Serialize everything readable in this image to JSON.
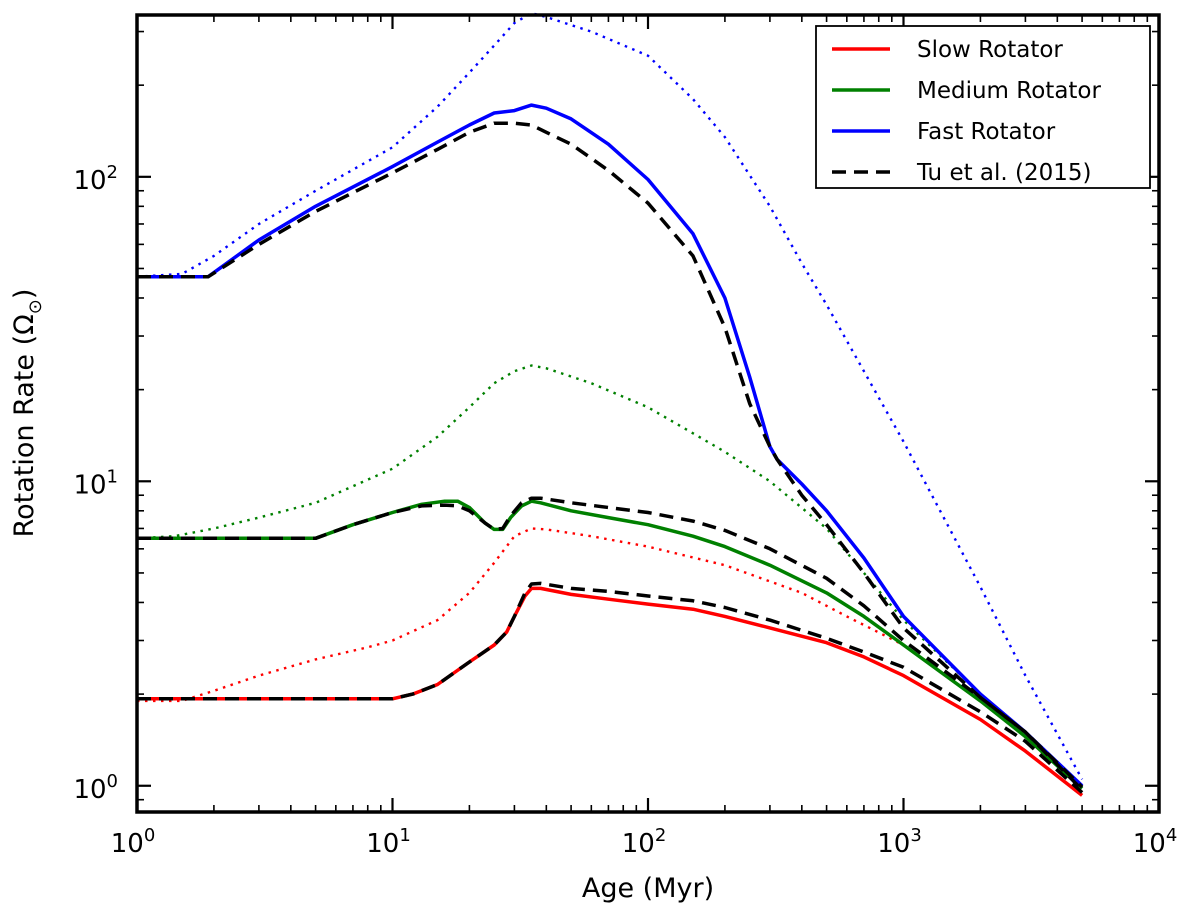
{
  "chart_data": {
    "type": "line",
    "title": "",
    "xlabel": "Age (Myr)",
    "ylabel": "Rotation Rate (Ω",
    "ylabel_sub": "⊙",
    "ylabel_close": ")",
    "xscale": "log",
    "yscale": "log",
    "xlim": [
      1,
      10000
    ],
    "ylim": [
      0.82,
      340
    ],
    "x_ticks": [
      {
        "value": 1,
        "base": "10",
        "exp": "0"
      },
      {
        "value": 10,
        "base": "10",
        "exp": "1"
      },
      {
        "value": 100,
        "base": "10",
        "exp": "2"
      },
      {
        "value": 1000,
        "base": "10",
        "exp": "3"
      },
      {
        "value": 10000,
        "base": "10",
        "exp": "4"
      }
    ],
    "y_ticks": [
      {
        "value": 1,
        "base": "10",
        "exp": "0"
      },
      {
        "value": 10,
        "base": "10",
        "exp": "1"
      },
      {
        "value": 100,
        "base": "10",
        "exp": "2"
      }
    ],
    "legend": [
      {
        "label": "Slow Rotator",
        "color": "#ff0000",
        "style": "solid"
      },
      {
        "label": "Medium Rotator",
        "color": "#008000",
        "style": "solid"
      },
      {
        "label": "Fast Rotator",
        "color": "#0000ff",
        "style": "solid"
      },
      {
        "label": "Tu et al. (2015)",
        "color": "#000000",
        "style": "dashed"
      }
    ],
    "series": [
      {
        "name": "Slow Rotator (dotted)",
        "color": "#ff0000",
        "style": "dotted",
        "points": [
          [
            1,
            1.9
          ],
          [
            1.5,
            1.9
          ],
          [
            2,
            2.05
          ],
          [
            3,
            2.3
          ],
          [
            5,
            2.6
          ],
          [
            8,
            2.85
          ],
          [
            10,
            3.0
          ],
          [
            15,
            3.5
          ],
          [
            20,
            4.3
          ],
          [
            25,
            5.4
          ],
          [
            30,
            6.6
          ],
          [
            35,
            7.0
          ],
          [
            40,
            6.95
          ],
          [
            60,
            6.6
          ],
          [
            100,
            6.1
          ],
          [
            200,
            5.3
          ],
          [
            400,
            4.3
          ],
          [
            600,
            3.6
          ],
          [
            1000,
            2.9
          ],
          [
            2000,
            1.9
          ],
          [
            3000,
            1.45
          ],
          [
            5000,
            1.0
          ]
        ]
      },
      {
        "name": "Medium Rotator (dotted)",
        "color": "#008000",
        "style": "dotted",
        "points": [
          [
            1,
            6.5
          ],
          [
            1.4,
            6.6
          ],
          [
            2,
            7.0
          ],
          [
            3,
            7.6
          ],
          [
            5,
            8.5
          ],
          [
            10,
            11
          ],
          [
            15,
            14
          ],
          [
            20,
            17.5
          ],
          [
            25,
            21
          ],
          [
            30,
            23
          ],
          [
            35,
            24
          ],
          [
            40,
            23.5
          ],
          [
            60,
            21
          ],
          [
            100,
            17.5
          ],
          [
            200,
            12.5
          ],
          [
            300,
            10
          ],
          [
            500,
            7
          ],
          [
            700,
            5
          ],
          [
            1000,
            3.5
          ],
          [
            2000,
            2.0
          ],
          [
            3000,
            1.5
          ],
          [
            5000,
            1.0
          ]
        ]
      },
      {
        "name": "Fast Rotator (dotted)",
        "color": "#0000ff",
        "style": "dotted",
        "points": [
          [
            1,
            47
          ],
          [
            1.5,
            48
          ],
          [
            2,
            55
          ],
          [
            3,
            70
          ],
          [
            5,
            90
          ],
          [
            10,
            125
          ],
          [
            15,
            170
          ],
          [
            20,
            220
          ],
          [
            25,
            270
          ],
          [
            30,
            320
          ],
          [
            35,
            345
          ],
          [
            40,
            335
          ],
          [
            60,
            300
          ],
          [
            100,
            250
          ],
          [
            150,
            180
          ],
          [
            200,
            135
          ],
          [
            300,
            80
          ],
          [
            400,
            52
          ],
          [
            500,
            38
          ],
          [
            700,
            23
          ],
          [
            1000,
            13.5
          ],
          [
            2000,
            4.5
          ],
          [
            3000,
            2.3
          ],
          [
            5000,
            1.05
          ]
        ]
      },
      {
        "name": "Slow Rotator",
        "color": "#ff0000",
        "style": "solid",
        "points": [
          [
            1,
            1.93
          ],
          [
            10,
            1.93
          ],
          [
            12,
            2.0
          ],
          [
            15,
            2.15
          ],
          [
            20,
            2.55
          ],
          [
            25,
            2.9
          ],
          [
            28,
            3.2
          ],
          [
            30,
            3.6
          ],
          [
            33,
            4.2
          ],
          [
            35,
            4.45
          ],
          [
            38,
            4.45
          ],
          [
            50,
            4.25
          ],
          [
            70,
            4.1
          ],
          [
            100,
            3.95
          ],
          [
            150,
            3.8
          ],
          [
            200,
            3.6
          ],
          [
            300,
            3.3
          ],
          [
            500,
            2.95
          ],
          [
            700,
            2.65
          ],
          [
            1000,
            2.3
          ],
          [
            2000,
            1.65
          ],
          [
            3000,
            1.3
          ],
          [
            5000,
            0.93
          ]
        ]
      },
      {
        "name": "Medium Rotator",
        "color": "#008000",
        "style": "solid",
        "points": [
          [
            1,
            6.5
          ],
          [
            5,
            6.5
          ],
          [
            7,
            7.2
          ],
          [
            10,
            7.9
          ],
          [
            13,
            8.4
          ],
          [
            16,
            8.6
          ],
          [
            18,
            8.6
          ],
          [
            20,
            8.2
          ],
          [
            23,
            7.3
          ],
          [
            25,
            6.95
          ],
          [
            27,
            6.95
          ],
          [
            29,
            7.6
          ],
          [
            32,
            8.3
          ],
          [
            35,
            8.6
          ],
          [
            38,
            8.5
          ],
          [
            50,
            8.0
          ],
          [
            70,
            7.6
          ],
          [
            100,
            7.2
          ],
          [
            150,
            6.6
          ],
          [
            200,
            6.1
          ],
          [
            300,
            5.3
          ],
          [
            500,
            4.3
          ],
          [
            700,
            3.6
          ],
          [
            1000,
            2.9
          ],
          [
            2000,
            1.9
          ],
          [
            3000,
            1.45
          ],
          [
            5000,
            0.98
          ]
        ]
      },
      {
        "name": "Fast Rotator",
        "color": "#0000ff",
        "style": "solid",
        "points": [
          [
            1,
            47
          ],
          [
            1.9,
            47
          ],
          [
            3,
            62
          ],
          [
            5,
            80
          ],
          [
            10,
            108
          ],
          [
            15,
            130
          ],
          [
            20,
            148
          ],
          [
            25,
            162
          ],
          [
            30,
            165
          ],
          [
            35,
            172
          ],
          [
            40,
            168
          ],
          [
            50,
            155
          ],
          [
            70,
            128
          ],
          [
            100,
            98
          ],
          [
            150,
            65
          ],
          [
            200,
            40
          ],
          [
            250,
            22
          ],
          [
            300,
            13
          ],
          [
            320,
            11.8
          ],
          [
            400,
            9.8
          ],
          [
            500,
            8.0
          ],
          [
            700,
            5.6
          ],
          [
            1000,
            3.6
          ],
          [
            2000,
            2.0
          ],
          [
            3000,
            1.5
          ],
          [
            5000,
            1.0
          ]
        ]
      },
      {
        "name": "Tu et al. (2015) - slow",
        "color": "#000000",
        "style": "dashed",
        "points": [
          [
            1,
            1.93
          ],
          [
            10,
            1.93
          ],
          [
            12,
            2.0
          ],
          [
            15,
            2.15
          ],
          [
            20,
            2.55
          ],
          [
            25,
            2.9
          ],
          [
            28,
            3.2
          ],
          [
            30,
            3.6
          ],
          [
            33,
            4.3
          ],
          [
            35,
            4.6
          ],
          [
            38,
            4.62
          ],
          [
            50,
            4.45
          ],
          [
            70,
            4.35
          ],
          [
            100,
            4.2
          ],
          [
            150,
            4.05
          ],
          [
            200,
            3.85
          ],
          [
            300,
            3.5
          ],
          [
            500,
            3.05
          ],
          [
            700,
            2.75
          ],
          [
            1000,
            2.45
          ],
          [
            2000,
            1.75
          ],
          [
            3000,
            1.4
          ],
          [
            5000,
            0.95
          ]
        ]
      },
      {
        "name": "Tu et al. (2015) - medium",
        "color": "#000000",
        "style": "dashed",
        "points": [
          [
            1,
            6.5
          ],
          [
            5,
            6.5
          ],
          [
            7,
            7.2
          ],
          [
            10,
            7.9
          ],
          [
            13,
            8.3
          ],
          [
            16,
            8.35
          ],
          [
            18,
            8.3
          ],
          [
            20,
            8.0
          ],
          [
            23,
            7.3
          ],
          [
            25,
            6.95
          ],
          [
            27,
            7.0
          ],
          [
            29,
            7.7
          ],
          [
            32,
            8.5
          ],
          [
            35,
            8.8
          ],
          [
            38,
            8.8
          ],
          [
            50,
            8.5
          ],
          [
            70,
            8.2
          ],
          [
            100,
            7.9
          ],
          [
            150,
            7.4
          ],
          [
            200,
            6.9
          ],
          [
            300,
            6.0
          ],
          [
            500,
            4.8
          ],
          [
            700,
            3.9
          ],
          [
            1000,
            3.0
          ],
          [
            2000,
            1.95
          ],
          [
            3000,
            1.5
          ],
          [
            5000,
            0.99
          ]
        ]
      },
      {
        "name": "Tu et al. (2015) - fast",
        "color": "#000000",
        "style": "dashed",
        "points": [
          [
            1,
            47
          ],
          [
            1.9,
            47
          ],
          [
            3,
            60
          ],
          [
            5,
            77
          ],
          [
            10,
            103
          ],
          [
            15,
            123
          ],
          [
            20,
            140
          ],
          [
            25,
            150
          ],
          [
            30,
            150
          ],
          [
            35,
            148
          ],
          [
            40,
            140
          ],
          [
            50,
            128
          ],
          [
            70,
            105
          ],
          [
            100,
            82
          ],
          [
            150,
            55
          ],
          [
            200,
            32
          ],
          [
            250,
            18
          ],
          [
            300,
            13
          ],
          [
            320,
            11.8
          ],
          [
            400,
            9.0
          ],
          [
            500,
            7.2
          ],
          [
            700,
            5.0
          ],
          [
            1000,
            3.3
          ],
          [
            2000,
            1.95
          ],
          [
            3000,
            1.5
          ],
          [
            5000,
            0.97
          ]
        ]
      }
    ]
  }
}
